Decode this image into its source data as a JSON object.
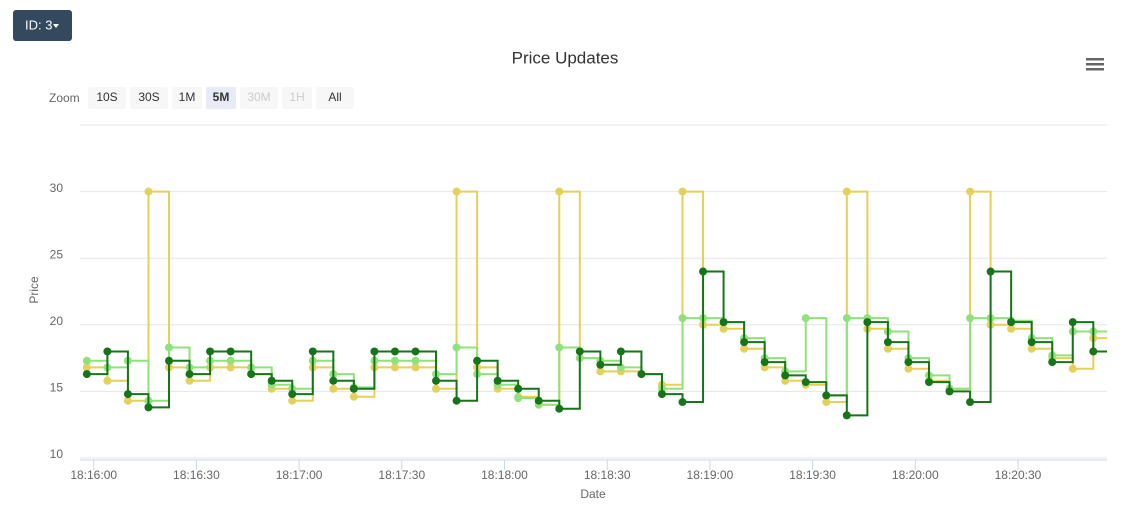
{
  "header": {
    "button": "ID: 3"
  },
  "zoom": {
    "label": "Zoom",
    "buttons": [
      "10S",
      "30S",
      "1M",
      "5M",
      "30M",
      "1H",
      "All"
    ],
    "selected": "5M",
    "disabled": [
      "30M",
      "1H"
    ]
  },
  "chart_data": {
    "type": "step-line",
    "title": "Price Updates",
    "x_label": "Date",
    "y_label": "Price",
    "x": [
      "18:15:58",
      "18:16:04",
      "18:16:10",
      "18:16:16",
      "18:16:22",
      "18:16:28",
      "18:16:34",
      "18:16:40",
      "18:16:46",
      "18:16:52",
      "18:16:58",
      "18:17:04",
      "18:17:10",
      "18:17:16",
      "18:17:22",
      "18:17:28",
      "18:17:34",
      "18:17:40",
      "18:17:46",
      "18:17:52",
      "18:17:58",
      "18:18:04",
      "18:18:10",
      "18:18:16",
      "18:18:22",
      "18:18:28",
      "18:18:34",
      "18:18:40",
      "18:18:46",
      "18:18:52",
      "18:18:58",
      "18:19:04",
      "18:19:10",
      "18:19:16",
      "18:19:22",
      "18:19:28",
      "18:19:34",
      "18:19:40",
      "18:19:46",
      "18:19:52",
      "18:19:58",
      "18:20:04",
      "18:20:10",
      "18:20:16",
      "18:20:22",
      "18:20:28",
      "18:20:34",
      "18:20:40",
      "18:20:46",
      "18:20:52"
    ],
    "series": [
      {
        "color": "#e5d05a",
        "values": [
          16.8,
          15.8,
          14.3,
          30,
          16.8,
          15.8,
          16.8,
          16.8,
          16.3,
          15.2,
          14.3,
          16.8,
          15.2,
          14.6,
          16.8,
          16.8,
          16.8,
          15.2,
          30,
          16.8,
          15.2,
          14.6,
          14.0,
          30,
          17.5,
          16.5,
          16.5,
          16.3,
          15.5,
          30,
          20,
          19.7,
          18.2,
          16.8,
          15.8,
          15.5,
          14.2,
          30,
          19.7,
          18.2,
          16.7,
          15.8,
          15.2,
          30,
          20,
          19.7,
          18.2,
          17.5,
          16.7,
          19
        ]
      },
      {
        "color": "#8fe27a",
        "values": [
          17.3,
          16.8,
          17.3,
          14.3,
          18.3,
          16.8,
          17.3,
          17.3,
          16.8,
          15.5,
          15.2,
          17.3,
          16.3,
          15.3,
          17.3,
          17.3,
          17.3,
          16.3,
          18.3,
          16.3,
          15.5,
          14.5,
          14.0,
          18.3,
          17.5,
          17.3,
          16.8,
          16.3,
          15.2,
          20.5,
          20.5,
          20.2,
          19.0,
          17.5,
          16.5,
          20.5,
          14.7,
          20.5,
          20.5,
          19.5,
          17.5,
          16.2,
          15.2,
          20.5,
          20.5,
          20.3,
          19.0,
          17.7,
          19.5,
          19.5
        ]
      },
      {
        "color": "#16741a",
        "values": [
          16.3,
          18,
          14.8,
          13.8,
          17.3,
          16.3,
          18,
          18,
          16.3,
          15.8,
          14.8,
          18,
          15.8,
          15.2,
          18,
          18,
          18,
          15.8,
          14.3,
          17.3,
          15.8,
          15.2,
          14.3,
          13.7,
          18,
          17,
          18,
          16.3,
          14.8,
          14.2,
          24,
          20.2,
          18.7,
          17.2,
          16.2,
          15.7,
          14.7,
          13.2,
          20.2,
          18.7,
          17.2,
          15.7,
          15,
          14.2,
          24,
          20.2,
          18.7,
          17.2,
          20.2,
          18
        ]
      }
    ],
    "xlim": [
      "18:15:56",
      "18:20:56"
    ],
    "xticks": [
      "18:16:00",
      "18:16:30",
      "18:17:00",
      "18:17:30",
      "18:18:00",
      "18:18:30",
      "18:19:00",
      "18:19:30",
      "18:20:00",
      "18:20:30"
    ],
    "ylim": [
      10,
      35
    ],
    "yticks": [
      10,
      15,
      20,
      25,
      30
    ],
    "grid": true
  }
}
